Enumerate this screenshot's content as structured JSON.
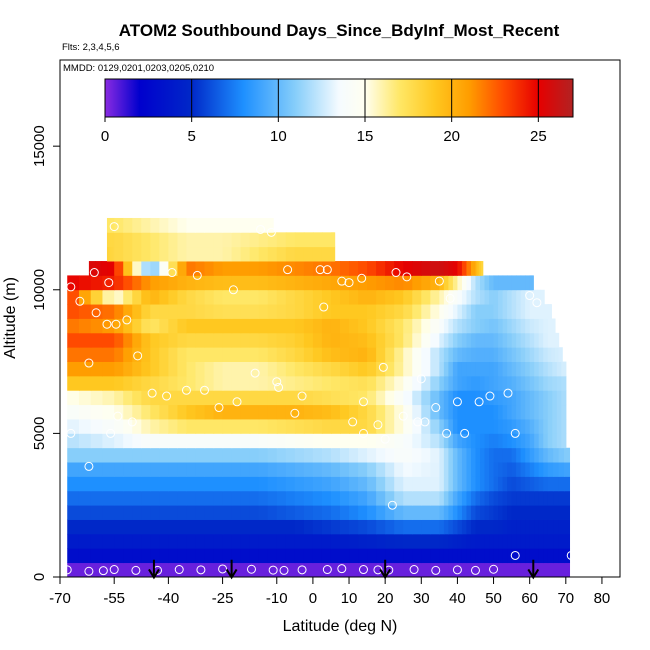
{
  "chart_data": {
    "type": "heatmap",
    "title": "ATOM2 Southbound Days_Since_BdyInf_Most_Recent",
    "subtitle_flights": "Flts: 2,3,4,5,6",
    "annotation_dates": "MMDD: 0129,0201,0203,0205,0210",
    "xlabel": "Latitude (deg N)",
    "ylabel": "Altitude (m)",
    "xlim": [
      -70,
      85
    ],
    "ylim": [
      0,
      18000
    ],
    "x_ticks": [
      -70,
      -55,
      -40,
      -25,
      -10,
      0,
      10,
      20,
      30,
      40,
      50,
      60,
      70,
      80
    ],
    "x_tick_labels": [
      "-70",
      "-55",
      "-40",
      "-25",
      "-10",
      "0",
      "10",
      "20",
      "30",
      "40",
      "50",
      "60",
      "70",
      "80"
    ],
    "y_ticks": [
      0,
      5000,
      10000,
      15000
    ],
    "y_tick_labels": [
      "0",
      "5000",
      "10000",
      "15000"
    ],
    "colorbar": {
      "range": [
        0,
        27
      ],
      "ticks": [
        0,
        5,
        10,
        15,
        20,
        25
      ],
      "tick_labels": [
        "0",
        "5",
        "10",
        "15",
        "20",
        "25"
      ],
      "stops": [
        {
          "v": 0,
          "color": "#8a2be2"
        },
        {
          "v": 2,
          "color": "#0000cd"
        },
        {
          "v": 5,
          "color": "#0028c8"
        },
        {
          "v": 8,
          "color": "#1e90ff"
        },
        {
          "v": 11,
          "color": "#87cefa"
        },
        {
          "v": 13.5,
          "color": "#f5fbff"
        },
        {
          "v": 15,
          "color": "#fffff0"
        },
        {
          "v": 17,
          "color": "#ffe766"
        },
        {
          "v": 19,
          "color": "#ffc820"
        },
        {
          "v": 21,
          "color": "#ff9d00"
        },
        {
          "v": 23,
          "color": "#ff4a00"
        },
        {
          "v": 25,
          "color": "#e60000"
        },
        {
          "v": 27,
          "color": "#b22222"
        }
      ]
    },
    "latitude_nodes": [
      -68,
      -55,
      -45,
      -35,
      -25,
      -15,
      -5,
      5,
      15,
      25,
      35,
      40,
      45,
      50,
      55,
      60,
      65,
      71
    ],
    "altitude_bins_m": [
      0,
      500,
      1000,
      1500,
      2000,
      2500,
      3000,
      3500,
      4000,
      4500,
      5000,
      5500,
      6000,
      6500,
      7000,
      7500,
      8000,
      8500,
      9000,
      9500,
      10000,
      10500,
      11000,
      11500,
      12000
    ],
    "layers": [
      {
        "alt": 250,
        "lon": -68,
        "loff": 71,
        "values": [
          0.5,
          0.5,
          0.5,
          0.5,
          0.5,
          0.5,
          0.5,
          0.5,
          0.5,
          0.5,
          0.5,
          0.5,
          0.5,
          0.5,
          0.5,
          0.5,
          0.5,
          0.5
        ]
      },
      {
        "alt": 750,
        "lon": -68,
        "loff": 71,
        "values": [
          3,
          3,
          3,
          3,
          3,
          3,
          3,
          3,
          3,
          3,
          3,
          3,
          3,
          3,
          3,
          3,
          3,
          3
        ]
      },
      {
        "alt": 1250,
        "lon": -68,
        "loff": 71,
        "values": [
          4,
          4,
          4,
          4,
          4,
          4,
          4,
          4,
          4.5,
          5,
          5,
          4.5,
          4,
          4,
          4,
          4,
          4,
          4
        ]
      },
      {
        "alt": 1750,
        "lon": -68,
        "loff": 71,
        "values": [
          5,
          5,
          5,
          5,
          5,
          5,
          5,
          5.5,
          6,
          7,
          7,
          6,
          5,
          5,
          4.5,
          4.5,
          4.5,
          4.5
        ]
      },
      {
        "alt": 2250,
        "lon": -68,
        "loff": 71,
        "values": [
          6,
          6,
          6,
          6,
          6,
          6,
          6.5,
          7,
          8,
          10,
          10,
          8,
          6,
          5.5,
          5,
          5,
          5,
          5
        ]
      },
      {
        "alt": 2750,
        "lon": -68,
        "loff": 71,
        "values": [
          7,
          7,
          7,
          7,
          7,
          7,
          7.5,
          8,
          9,
          12,
          12,
          9,
          7,
          6,
          5.5,
          5.5,
          5.5,
          5.5
        ]
      },
      {
        "alt": 3250,
        "lon": -68,
        "loff": 71,
        "values": [
          8,
          8,
          8,
          8,
          8,
          8,
          8.5,
          9,
          10,
          13,
          13,
          10,
          8,
          7,
          6,
          6.5,
          7,
          7
        ]
      },
      {
        "alt": 3750,
        "lon": -68,
        "loff": 71,
        "values": [
          9,
          9,
          9,
          9,
          9,
          9,
          9.5,
          10,
          11,
          13.5,
          13,
          10,
          8,
          7,
          6.5,
          7.5,
          8.5,
          9
        ]
      },
      {
        "alt": 4250,
        "lon": -68,
        "loff": 71,
        "values": [
          11,
          11,
          11,
          11,
          11,
          11,
          11.5,
          12,
          13,
          14,
          13,
          10,
          8,
          7,
          7,
          8.5,
          10,
          11
        ]
      },
      {
        "alt": 4750,
        "lon": -68,
        "loff": 70,
        "values": [
          12,
          13,
          14,
          14,
          14,
          14,
          14.5,
          15,
          15,
          14,
          12,
          9,
          8,
          7.5,
          8,
          9,
          11,
          12
        ]
      },
      {
        "alt": 5250,
        "lon": -68,
        "loff": 70,
        "values": [
          13,
          14,
          16,
          17,
          17,
          17,
          17.5,
          18,
          18,
          15,
          11,
          8,
          8,
          8,
          8.5,
          9.5,
          11,
          12
        ]
      },
      {
        "alt": 5750,
        "lon": -68,
        "loff": 70,
        "values": [
          14,
          15,
          17,
          19,
          20,
          20,
          20,
          19.5,
          18,
          15,
          10,
          8,
          8,
          8,
          9,
          10,
          11,
          12
        ]
      },
      {
        "alt": 6250,
        "lon": -68,
        "loff": 70,
        "values": [
          15,
          16,
          18,
          18,
          18,
          18,
          18,
          17.5,
          17,
          14,
          10,
          8,
          8,
          8.5,
          9,
          10,
          11,
          12
        ]
      },
      {
        "alt": 6750,
        "lon": -68,
        "loff": 70,
        "values": [
          19,
          19,
          18,
          17,
          16,
          16,
          16.5,
          17,
          17.5,
          15,
          11,
          9,
          8.5,
          9,
          9.5,
          10.5,
          11.5,
          12
        ]
      },
      {
        "alt": 7250,
        "lon": -68,
        "loff": 70,
        "values": [
          21,
          21,
          19,
          17,
          16,
          16,
          17,
          18,
          19,
          16,
          12,
          9,
          9,
          9,
          10,
          11,
          12,
          13
        ]
      },
      {
        "alt": 7750,
        "lon": -68,
        "loff": 69,
        "values": [
          22,
          22,
          19,
          17,
          17,
          17,
          18,
          19.5,
          20,
          16,
          12,
          10,
          9.5,
          9.5,
          10.5,
          11.5,
          12.5,
          13
        ]
      },
      {
        "alt": 8250,
        "lon": -68,
        "loff": 68,
        "values": [
          23,
          23,
          19,
          18,
          18,
          18,
          18.5,
          20,
          19.5,
          17,
          13,
          11,
          10,
          10,
          11,
          12,
          13,
          13
        ]
      },
      {
        "alt": 8750,
        "lon": -68,
        "loff": 67,
        "values": [
          22,
          21,
          17,
          19,
          19,
          19,
          19,
          20,
          19,
          17,
          14,
          12,
          11,
          10.5,
          11.5,
          12.5,
          13,
          13
        ]
      },
      {
        "alt": 9250,
        "lon": -68,
        "loff": 66,
        "values": [
          23,
          22,
          18,
          18,
          17.5,
          17.5,
          18,
          19,
          19,
          18,
          15,
          13,
          11,
          11,
          12,
          13,
          13,
          13
        ]
      },
      {
        "alt": 9750,
        "lon": -68,
        "loff": 64,
        "values": [
          24,
          15,
          20,
          18,
          17,
          17,
          18,
          19,
          20,
          19,
          16,
          14,
          12,
          11,
          12,
          13,
          13,
          13
        ]
      },
      {
        "alt": 10250,
        "lon": -68,
        "loff": 61,
        "values": [
          25,
          24,
          21,
          20,
          19.5,
          19.5,
          20,
          20.5,
          21,
          21.5,
          20,
          16,
          12,
          10,
          10,
          10,
          10,
          10
        ]
      },
      {
        "alt": 10750,
        "lon": -62,
        "loff": 47,
        "values": [
          26,
          25,
          10,
          22,
          21,
          21,
          21.5,
          22,
          23,
          25,
          26,
          25,
          20,
          15,
          15,
          15,
          15,
          15
        ]
      },
      {
        "alt": 11250,
        "lon": -57,
        "loff": 6,
        "values": [
          20,
          18,
          17,
          16,
          16,
          17,
          18,
          18,
          18,
          18,
          18,
          18,
          18,
          18,
          18,
          18,
          18,
          18
        ]
      },
      {
        "alt": 11750,
        "lon": -57,
        "loff": 6,
        "values": [
          18,
          18,
          17,
          16,
          16,
          16.5,
          17,
          17,
          17,
          17,
          17,
          17,
          17,
          17,
          17,
          17,
          17,
          17
        ]
      },
      {
        "alt": 12250,
        "lon": -57,
        "loff": -11,
        "values": [
          17,
          17,
          16,
          15,
          15,
          15,
          15,
          15,
          15,
          15,
          15,
          15,
          15,
          15,
          15,
          15,
          15,
          15
        ]
      }
    ],
    "flight_obs_points": [
      [
        -67,
        10100
      ],
      [
        -64.5,
        9600
      ],
      [
        -60.5,
        10600
      ],
      [
        -58.5,
        11800
      ],
      [
        -55,
        12200
      ],
      [
        -56.5,
        10250
      ],
      [
        -60,
        9200
      ],
      [
        -57,
        8800
      ],
      [
        -54.5,
        8800
      ],
      [
        -51.5,
        8950
      ],
      [
        -62,
        7450
      ],
      [
        -48.5,
        7700
      ],
      [
        -44.5,
        6400
      ],
      [
        -40.5,
        6300
      ],
      [
        -35,
        6500
      ],
      [
        -30,
        6500
      ],
      [
        -26,
        5900
      ],
      [
        -21,
        6100
      ],
      [
        -16,
        7100
      ],
      [
        -10,
        6800
      ],
      [
        -9.5,
        6600
      ],
      [
        -5,
        5700
      ],
      [
        -3,
        6300
      ],
      [
        -7,
        10700
      ],
      [
        2,
        10700
      ],
      [
        4,
        10700
      ],
      [
        3,
        9400
      ],
      [
        -22,
        10000
      ],
      [
        -32,
        10500
      ],
      [
        -39,
        10600
      ],
      [
        8,
        10300
      ],
      [
        10,
        10250
      ],
      [
        13.5,
        10400
      ],
      [
        19.5,
        7300
      ],
      [
        23,
        10600
      ],
      [
        26,
        10450
      ],
      [
        35,
        10300
      ],
      [
        30,
        6900
      ],
      [
        14,
        6100
      ],
      [
        11,
        5400
      ],
      [
        14,
        5000
      ],
      [
        18,
        5300
      ],
      [
        20,
        4800
      ],
      [
        25,
        5600
      ],
      [
        29,
        5400
      ],
      [
        31,
        5400
      ],
      [
        34,
        5900
      ],
      [
        40,
        6100
      ],
      [
        37,
        5000
      ],
      [
        42,
        5000
      ],
      [
        46,
        6100
      ],
      [
        49,
        6300
      ],
      [
        54,
        6400
      ],
      [
        56,
        5000
      ],
      [
        60,
        9800
      ],
      [
        62,
        9550
      ],
      [
        38,
        9700
      ],
      [
        22,
        2500
      ],
      [
        56,
        750
      ],
      [
        71.5,
        750
      ],
      [
        -14.5,
        12100
      ],
      [
        -11.5,
        12000
      ],
      [
        -62,
        3850
      ],
      [
        -50,
        5400
      ],
      [
        -56,
        5000
      ],
      [
        -54,
        5600
      ],
      [
        -67,
        5000
      ],
      [
        -68,
        250
      ],
      [
        -62,
        200
      ],
      [
        -58,
        220
      ],
      [
        -55,
        260
      ],
      [
        -49,
        230
      ],
      [
        -43,
        230
      ],
      [
        -37,
        260
      ],
      [
        -31,
        250
      ],
      [
        -25,
        280
      ],
      [
        -17,
        270
      ],
      [
        -11,
        240
      ],
      [
        -8,
        230
      ],
      [
        -3,
        250
      ],
      [
        4,
        260
      ],
      [
        8,
        290
      ],
      [
        14,
        260
      ],
      [
        18,
        250
      ],
      [
        21,
        240
      ],
      [
        28,
        260
      ],
      [
        34,
        230
      ],
      [
        40,
        250
      ],
      [
        45,
        230
      ],
      [
        50,
        270
      ]
    ],
    "arrow_latitudes": [
      -44,
      -22.5,
      20,
      61
    ],
    "legend": "colorbar-top"
  }
}
